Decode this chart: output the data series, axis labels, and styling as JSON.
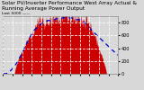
{
  "title": "Solar PV/Inverter Performance West Array Actual & Running Average Power Output",
  "subtitle": "Last 5000 ——",
  "bg_color": "#d8d8d8",
  "plot_bg_color": "#d8d8d8",
  "grid_color": "#ffffff",
  "bar_color": "#cc0000",
  "avg_color": "#0000cc",
  "num_points": 300,
  "y_max": 900,
  "title_fontsize": 4.2,
  "axis_fontsize": 3.5,
  "subtitle_fontsize": 3.2
}
